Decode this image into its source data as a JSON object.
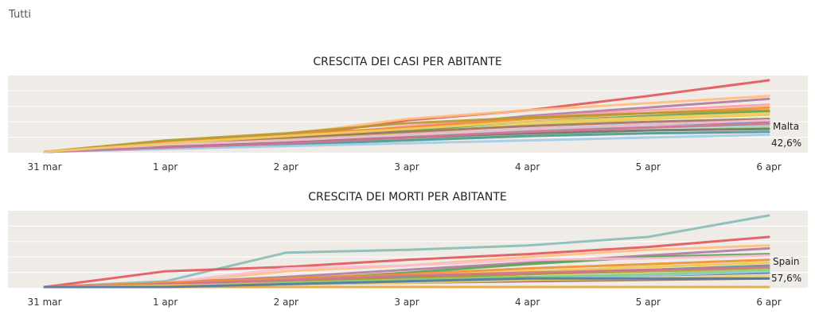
{
  "filter": {
    "label": "Tutti"
  },
  "colors": {
    "plot_bg": "#efece8",
    "gridline": "#ffffff"
  },
  "chart_data": [
    {
      "type": "line",
      "title": "CRESCITA DEI CASI PER ABITANTE",
      "categories": [
        "31 mar",
        "1 apr",
        "2 apr",
        "3 apr",
        "4 apr",
        "5 apr",
        "6 apr"
      ],
      "ylim": [
        0,
        100
      ],
      "grid": true,
      "highlight": {
        "name": "Malta",
        "value_label": "42,6%"
      },
      "series": [
        {
          "color": "#e15759",
          "values": [
            0,
            6,
            20,
            44,
            58,
            78,
            100
          ]
        },
        {
          "color": "#ffbe7d",
          "values": [
            0,
            14,
            24,
            46,
            58,
            68,
            78
          ]
        },
        {
          "color": "#b07aa1",
          "values": [
            0,
            10,
            20,
            34,
            50,
            62,
            74
          ]
        },
        {
          "color": "#ff9da7",
          "values": [
            0,
            8,
            18,
            36,
            48,
            58,
            66
          ]
        },
        {
          "color": "#f28e2b",
          "values": [
            0,
            14,
            24,
            34,
            46,
            54,
            62
          ]
        },
        {
          "color": "#b6992d",
          "values": [
            0,
            16,
            26,
            40,
            48,
            54,
            58
          ]
        },
        {
          "color": "#59a14f",
          "values": [
            0,
            12,
            20,
            30,
            42,
            50,
            56
          ]
        },
        {
          "color": "#edc948",
          "values": [
            0,
            10,
            18,
            26,
            38,
            46,
            52
          ]
        },
        {
          "color": "#9d7660",
          "values": [
            0,
            12,
            20,
            28,
            36,
            42,
            46
          ]
        },
        {
          "color": "#4e79a7",
          "values": [
            0,
            8,
            16,
            24,
            32,
            38,
            42.6
          ]
        },
        {
          "color": "#86bcb6",
          "values": [
            0,
            6,
            14,
            22,
            30,
            34,
            38
          ]
        },
        {
          "color": "#8cd17d",
          "values": [
            0,
            6,
            12,
            18,
            24,
            30,
            34
          ]
        },
        {
          "color": "#79706e",
          "values": [
            0,
            8,
            14,
            20,
            26,
            30,
            32
          ]
        },
        {
          "color": "#499894",
          "values": [
            0,
            6,
            10,
            16,
            22,
            26,
            28
          ]
        },
        {
          "color": "#a0cbe8",
          "values": [
            0,
            4,
            8,
            12,
            16,
            20,
            24
          ]
        },
        {
          "color": "#fabfd2",
          "values": [
            0,
            10,
            16,
            24,
            32,
            38,
            44
          ]
        },
        {
          "color": "#d37295",
          "values": [
            0,
            6,
            12,
            20,
            28,
            34,
            40
          ]
        },
        {
          "color": "#f1ce63",
          "values": [
            0,
            12,
            22,
            32,
            42,
            48,
            54
          ]
        }
      ]
    },
    {
      "type": "line",
      "title": "CRESCITA DEI MORTI PER ABITANTE",
      "categories": [
        "31 mar",
        "1 apr",
        "2 apr",
        "3 apr",
        "4 apr",
        "5 apr",
        "6 apr"
      ],
      "ylim": [
        0,
        100
      ],
      "grid": true,
      "highlight": {
        "name": "Spain",
        "value_label": "57,6%"
      },
      "series": [
        {
          "color": "#86bcb6",
          "values": [
            0,
            8,
            48,
            52,
            58,
            70,
            100
          ]
        },
        {
          "color": "#e15759",
          "values": [
            0,
            22,
            28,
            38,
            46,
            56,
            70
          ]
        },
        {
          "color": "#ffbe7d",
          "values": [
            0,
            6,
            22,
            30,
            42,
            52,
            58
          ]
        },
        {
          "color": "#b07aa1",
          "values": [
            0,
            6,
            14,
            24,
            34,
            44,
            54
          ]
        },
        {
          "color": "#59a14f",
          "values": [
            0,
            4,
            10,
            20,
            32,
            42,
            46
          ]
        },
        {
          "color": "#fabfd2",
          "values": [
            0,
            6,
            26,
            30,
            38,
            40,
            44
          ]
        },
        {
          "color": "#f28e2b",
          "values": [
            0,
            6,
            12,
            18,
            26,
            32,
            38
          ]
        },
        {
          "color": "#edc948",
          "values": [
            0,
            4,
            10,
            16,
            22,
            28,
            34
          ]
        },
        {
          "color": "#499894",
          "values": [
            0,
            2,
            8,
            14,
            18,
            24,
            30
          ]
        },
        {
          "color": "#4e79a7",
          "values": [
            0,
            2,
            6,
            10,
            14,
            16,
            20
          ]
        },
        {
          "color": "#a0cbe8",
          "values": [
            0,
            2,
            4,
            8,
            12,
            16,
            22
          ]
        },
        {
          "color": "#b6992d",
          "values": [
            0,
            4,
            8,
            12,
            18,
            22,
            26
          ]
        },
        {
          "color": "#8cd17d",
          "values": [
            0,
            2,
            6,
            10,
            14,
            18,
            24
          ]
        },
        {
          "color": "#d37295",
          "values": [
            0,
            4,
            10,
            16,
            20,
            24,
            28
          ]
        },
        {
          "color": "#9d7660",
          "values": [
            0,
            2,
            4,
            6,
            8,
            10,
            12
          ]
        },
        {
          "color": "#f1ce63",
          "values": [
            0,
            2,
            4,
            6,
            10,
            12,
            16
          ]
        },
        {
          "color": "#e8a435",
          "values": [
            0,
            0,
            0,
            0,
            0,
            0,
            0
          ]
        },
        {
          "color": "#4e79a7",
          "values": [
            0,
            0,
            4,
            8,
            12,
            12,
            12
          ]
        }
      ]
    }
  ]
}
